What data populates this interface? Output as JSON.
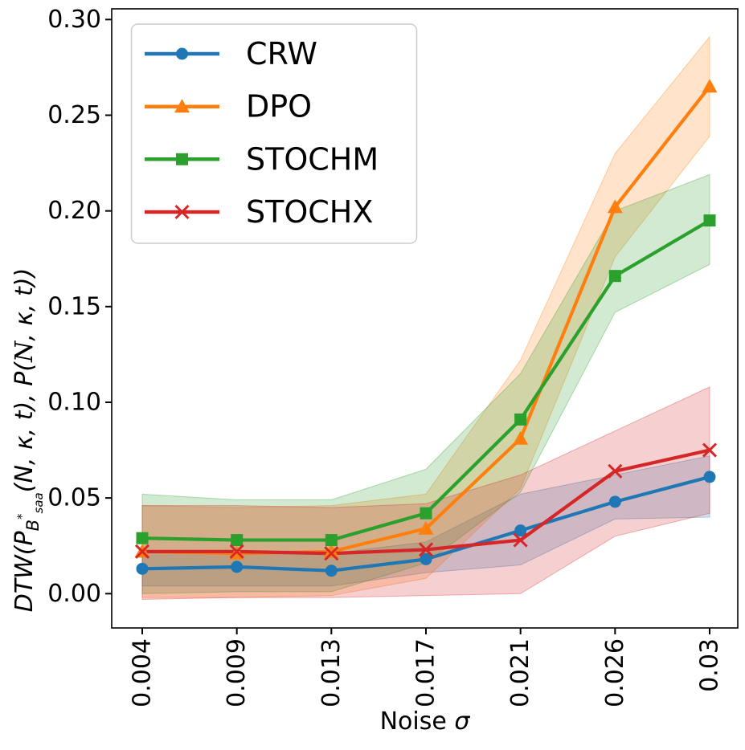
{
  "figure": {
    "background": "#ffffff",
    "spine_color": "#000000",
    "tick_color": "#000000",
    "text_color": "#000000",
    "legend_border_color": "#cccccc",
    "legend_background": "#ffffff"
  },
  "chart_data": {
    "type": "line",
    "title": "",
    "xlabel": "Noise σ",
    "xlabel_parts": {
      "prefix": "Noise ",
      "symbol": "σ"
    },
    "ylabel": "DTW(P_B*_saa(N, κ, t), P(𝒩, κ, t))",
    "ylabel_parts": [
      {
        "t": "DTW(P",
        "s": "main"
      },
      {
        "t": "B",
        "s": "sub"
      },
      {
        "t": "*",
        "s": "supsub"
      },
      {
        "t": "saa",
        "s": "subsub"
      },
      {
        "t": "(N, κ, t), P(",
        "s": "mainback"
      },
      {
        "t": "N",
        "s": "script"
      },
      {
        "t": ", κ, t))",
        "s": "main"
      }
    ],
    "x_tick_labels": [
      "0.004",
      "0.009",
      "0.013",
      "0.017",
      "0.021",
      "0.026",
      "0.03"
    ],
    "x_values": [
      0.004,
      0.009,
      0.013,
      0.017,
      0.021,
      0.026,
      0.03
    ],
    "y_ticks": [
      "0.00",
      "0.05",
      "0.10",
      "0.15",
      "0.20",
      "0.25",
      "0.30"
    ],
    "y_tick_values": [
      0.0,
      0.05,
      0.1,
      0.15,
      0.2,
      0.25,
      0.3
    ],
    "ylim": [
      -0.018,
      0.3055
    ],
    "grid": false,
    "legend_position": "upper-left",
    "band_opacity": 0.22,
    "series": [
      {
        "name": "CRW",
        "color": "#1f77b4",
        "marker": "circle",
        "values": [
          0.013,
          0.014,
          0.012,
          0.018,
          0.033,
          0.048,
          0.061
        ],
        "band_low": [
          0.004,
          0.004,
          0.004,
          0.011,
          0.015,
          0.039,
          0.04
        ],
        "band_high": [
          0.022,
          0.022,
          0.021,
          0.027,
          0.052,
          0.062,
          0.072
        ]
      },
      {
        "name": "DPO",
        "color": "#ff7f0e",
        "marker": "triangle",
        "values": [
          0.022,
          0.021,
          0.022,
          0.034,
          0.081,
          0.202,
          0.265
        ],
        "band_low": [
          -0.002,
          -0.002,
          -0.001,
          0.008,
          0.055,
          0.176,
          0.239
        ],
        "band_high": [
          0.046,
          0.045,
          0.046,
          0.052,
          0.122,
          0.23,
          0.291
        ]
      },
      {
        "name": "STOCHM",
        "color": "#2ca02c",
        "marker": "square",
        "values": [
          0.029,
          0.028,
          0.028,
          0.042,
          0.091,
          0.166,
          0.195
        ],
        "band_low": [
          0.0,
          0.001,
          0.001,
          0.016,
          0.053,
          0.147,
          0.172
        ],
        "band_high": [
          0.052,
          0.049,
          0.049,
          0.065,
          0.115,
          0.2,
          0.219
        ]
      },
      {
        "name": "STOCHX",
        "color": "#d62728",
        "marker": "x",
        "values": [
          0.022,
          0.022,
          0.021,
          0.023,
          0.028,
          0.064,
          0.075
        ],
        "band_low": [
          -0.003,
          -0.002,
          -0.002,
          -0.001,
          0.0,
          0.03,
          0.042
        ],
        "band_high": [
          0.046,
          0.046,
          0.045,
          0.047,
          0.062,
          0.085,
          0.108
        ]
      }
    ]
  }
}
